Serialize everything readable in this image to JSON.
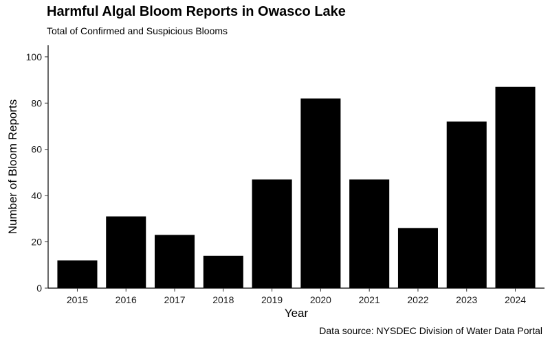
{
  "chart_data": {
    "type": "bar",
    "title": "Harmful Algal Bloom Reports in Owasco Lake",
    "subtitle": "Total of Confirmed and Suspicious Blooms",
    "caption": "Data source: NYSDEC Division of Water Data Portal",
    "xlabel": "Year",
    "ylabel": "Number of Bloom Reports",
    "categories": [
      "2015",
      "2016",
      "2017",
      "2018",
      "2019",
      "2020",
      "2021",
      "2022",
      "2023",
      "2024"
    ],
    "values": [
      12,
      31,
      23,
      14,
      47,
      82,
      47,
      26,
      72,
      87
    ],
    "ylim": [
      0,
      105
    ],
    "yticks": [
      0,
      20,
      40,
      60,
      80,
      100
    ],
    "grid": false,
    "bar_color": "#000000",
    "axis_color": "#000000"
  }
}
